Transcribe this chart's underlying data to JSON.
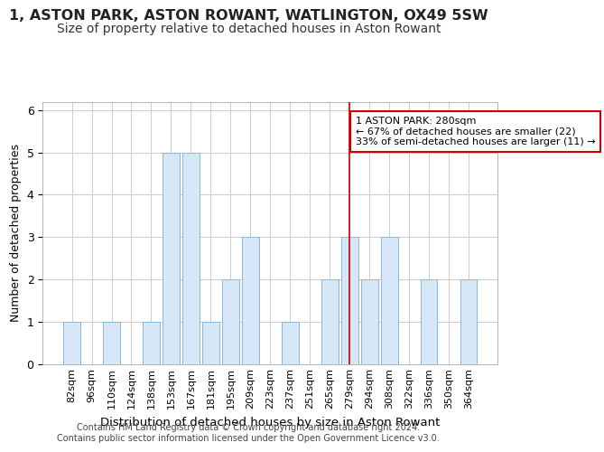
{
  "title": "1, ASTON PARK, ASTON ROWANT, WATLINGTON, OX49 5SW",
  "subtitle": "Size of property relative to detached houses in Aston Rowant",
  "xlabel": "Distribution of detached houses by size in Aston Rowant",
  "ylabel": "Number of detached properties",
  "categories": [
    "82sqm",
    "96sqm",
    "110sqm",
    "124sqm",
    "138sqm",
    "153sqm",
    "167sqm",
    "181sqm",
    "195sqm",
    "209sqm",
    "223sqm",
    "237sqm",
    "251sqm",
    "265sqm",
    "279sqm",
    "294sqm",
    "308sqm",
    "322sqm",
    "336sqm",
    "350sqm",
    "364sqm"
  ],
  "values": [
    1,
    0,
    1,
    0,
    1,
    5,
    5,
    1,
    2,
    3,
    0,
    1,
    0,
    2,
    3,
    2,
    3,
    0,
    2,
    0,
    2
  ],
  "bar_color": "#d6e8f7",
  "bar_edge_color": "#8ab8d8",
  "vline_x_index": 14,
  "vline_color": "#cc0000",
  "annotation_text": "1 ASTON PARK: 280sqm\n← 67% of detached houses are smaller (22)\n33% of semi-detached houses are larger (11) →",
  "annotation_box_color": "#ffffff",
  "annotation_box_edge": "#cc0000",
  "ylim": [
    0,
    6.2
  ],
  "yticks": [
    0,
    1,
    2,
    3,
    4,
    5,
    6
  ],
  "footer": "Contains HM Land Registry data © Crown copyright and database right 2024.\nContains public sector information licensed under the Open Government Licence v3.0.",
  "bg_color": "#ffffff",
  "grid_color": "#cccccc",
  "title_fontsize": 11.5,
  "subtitle_fontsize": 10,
  "xlabel_fontsize": 9.5,
  "ylabel_fontsize": 9,
  "tick_fontsize": 8,
  "footer_fontsize": 7
}
